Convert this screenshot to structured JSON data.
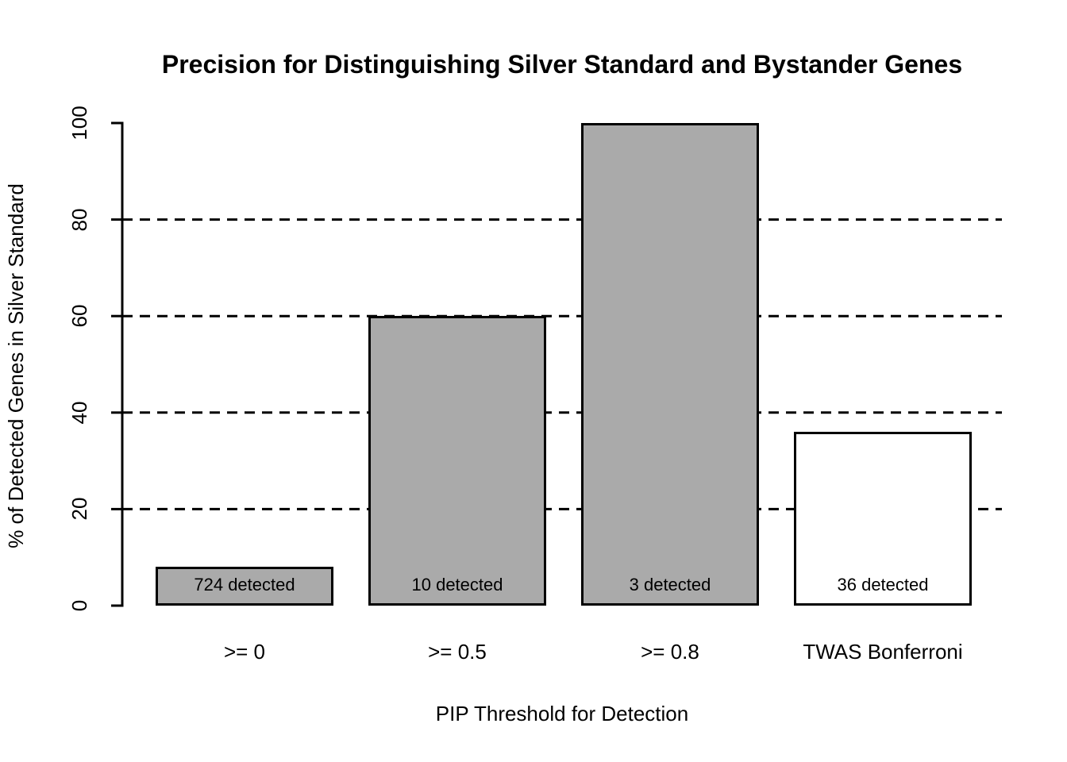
{
  "chart_data": {
    "type": "bar",
    "title": "Precision for Distinguishing Silver Standard and Bystander Genes",
    "xlabel": "PIP Threshold for Detection",
    "ylabel": "% of Detected Genes in Silver Standard",
    "categories": [
      ">= 0",
      ">= 0.5",
      ">= 0.8",
      "TWAS Bonferroni"
    ],
    "values": [
      8,
      60,
      100,
      36
    ],
    "bar_labels": [
      "724 detected",
      "10 detected",
      "3 detected",
      "36 detected"
    ],
    "bar_colors": [
      "#aaaaaa",
      "#aaaaaa",
      "#aaaaaa",
      "#ffffff"
    ],
    "bar_border_color": "#000000",
    "yticks": [
      "0",
      "20",
      "40",
      "60",
      "80",
      "100"
    ],
    "ytick_values": [
      0,
      20,
      40,
      60,
      80,
      100
    ],
    "gridline_values": [
      20,
      40,
      60,
      80
    ],
    "grid_style": "dashed",
    "ylim": [
      0,
      100
    ],
    "legend": "none",
    "axis_color": "#000000",
    "background": "#ffffff"
  }
}
